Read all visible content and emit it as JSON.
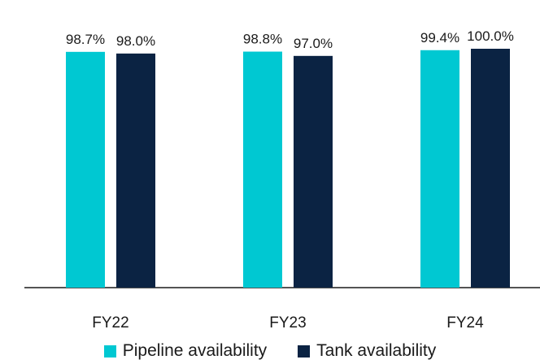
{
  "chart_data": {
    "type": "bar",
    "categories": [
      "FY22",
      "FY23",
      "FY24"
    ],
    "series": [
      {
        "name": "Pipeline availability",
        "values": [
          98.7,
          98.8,
          99.4
        ],
        "labels": [
          "98.7%",
          "98.8%",
          "99.4%"
        ],
        "color": "#00c8d2"
      },
      {
        "name": "Tank availability",
        "values": [
          98.0,
          97.0,
          100.0
        ],
        "labels": [
          "98.0%",
          "97.0%",
          "100.0%"
        ],
        "color": "#0b2343"
      }
    ],
    "ylim": [
      0,
      100
    ],
    "grid": false,
    "legend": "bottom",
    "title": "",
    "xlabel": "",
    "ylabel": ""
  }
}
